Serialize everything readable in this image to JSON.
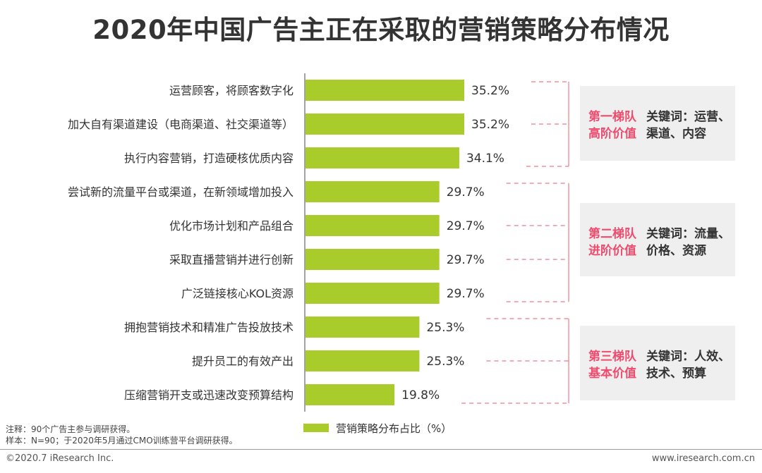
{
  "title": "2020年中国广告主正在采取的营销策略分布情况",
  "chart_data": {
    "type": "bar",
    "orientation": "horizontal",
    "categories": [
      "运营顾客，将顾客数字化",
      "加大自有渠道建设（电商渠道、社交渠道等）",
      "执行内容营销，打造硬核优质内容",
      "尝试新的流量平台或渠道，在新领域增加投入",
      "优化市场计划和产品组合",
      "采取直播营销并进行创新",
      "广泛链接核心KOL资源",
      "拥抱营销技术和精准广告投放技术",
      "提升员工的有效产出",
      "压缩营销开支或迅速改变预算结构"
    ],
    "series": [
      {
        "name": "营销策略分布占比（%）",
        "values": [
          35.2,
          35.2,
          34.1,
          29.7,
          29.7,
          29.7,
          29.7,
          25.3,
          25.3,
          19.8
        ],
        "labels": [
          "35.2%",
          "35.2%",
          "34.1%",
          "29.7%",
          "29.7%",
          "29.7%",
          "29.7%",
          "25.3%",
          "25.3%",
          "19.8%"
        ]
      }
    ],
    "bar_color": "#a9cc2a",
    "xlim": [
      0,
      35.2
    ],
    "legend_position": "bottom",
    "grid": false
  },
  "tiers": [
    {
      "name_line1": "第一梯队",
      "name_line2": "高阶价值",
      "keywords_line1": "关键词：运营、",
      "keywords_line2": "渠道、内容",
      "rows": [
        0,
        2
      ]
    },
    {
      "name_line1": "第二梯队",
      "name_line2": "进阶价值",
      "keywords_line1": "关键词：流量、",
      "keywords_line2": "价格、资源",
      "rows": [
        3,
        6
      ]
    },
    {
      "name_line1": "第三梯队",
      "name_line2": "基本价值",
      "keywords_line1": "关键词：人效、",
      "keywords_line2": "技术、预算",
      "rows": [
        7,
        9
      ]
    }
  ],
  "colors": {
    "accent": "#f04a6d",
    "bar": "#a9cc2a",
    "tier_bg": "#efefef"
  },
  "notes": {
    "note1": "注释：90个广告主参与调研获得。",
    "note2": "样本：N=90；于2020年5月通过CMO训练营平台调研获得。"
  },
  "footer": {
    "copyright": "©2020.7 iResearch Inc.",
    "website": "www.iresearch.com.cn"
  }
}
